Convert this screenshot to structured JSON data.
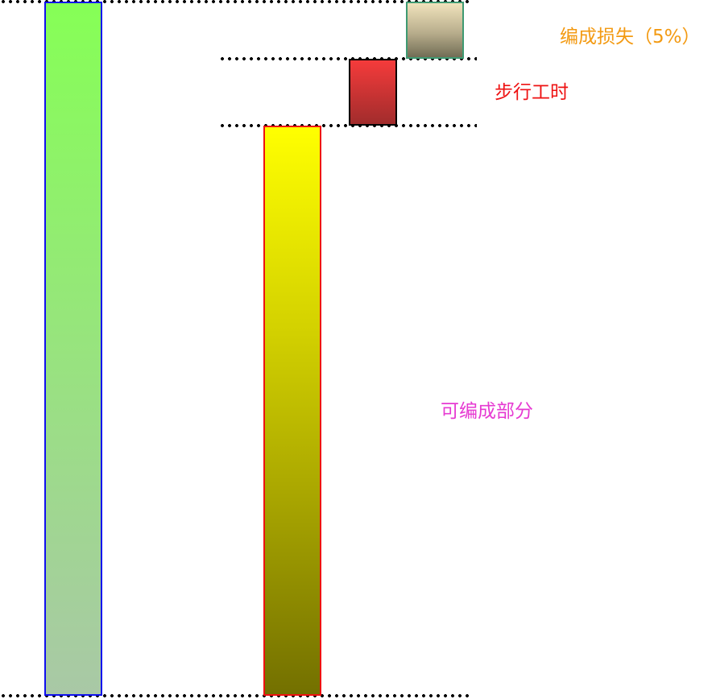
{
  "labels": {
    "loss": "编成损失（5%）",
    "walking_hours": "步行工时",
    "editable_part": "可编成部分"
  },
  "colors": {
    "total_bar_border": "#1010ee",
    "editable_bar_border": "#ee1111",
    "walking_bar_border": "#000000",
    "loss_bar_border": "#3e9a72",
    "loss_label": "#f39a12",
    "walking_label": "#ee1111",
    "editable_label": "#e63ad2"
  }
}
